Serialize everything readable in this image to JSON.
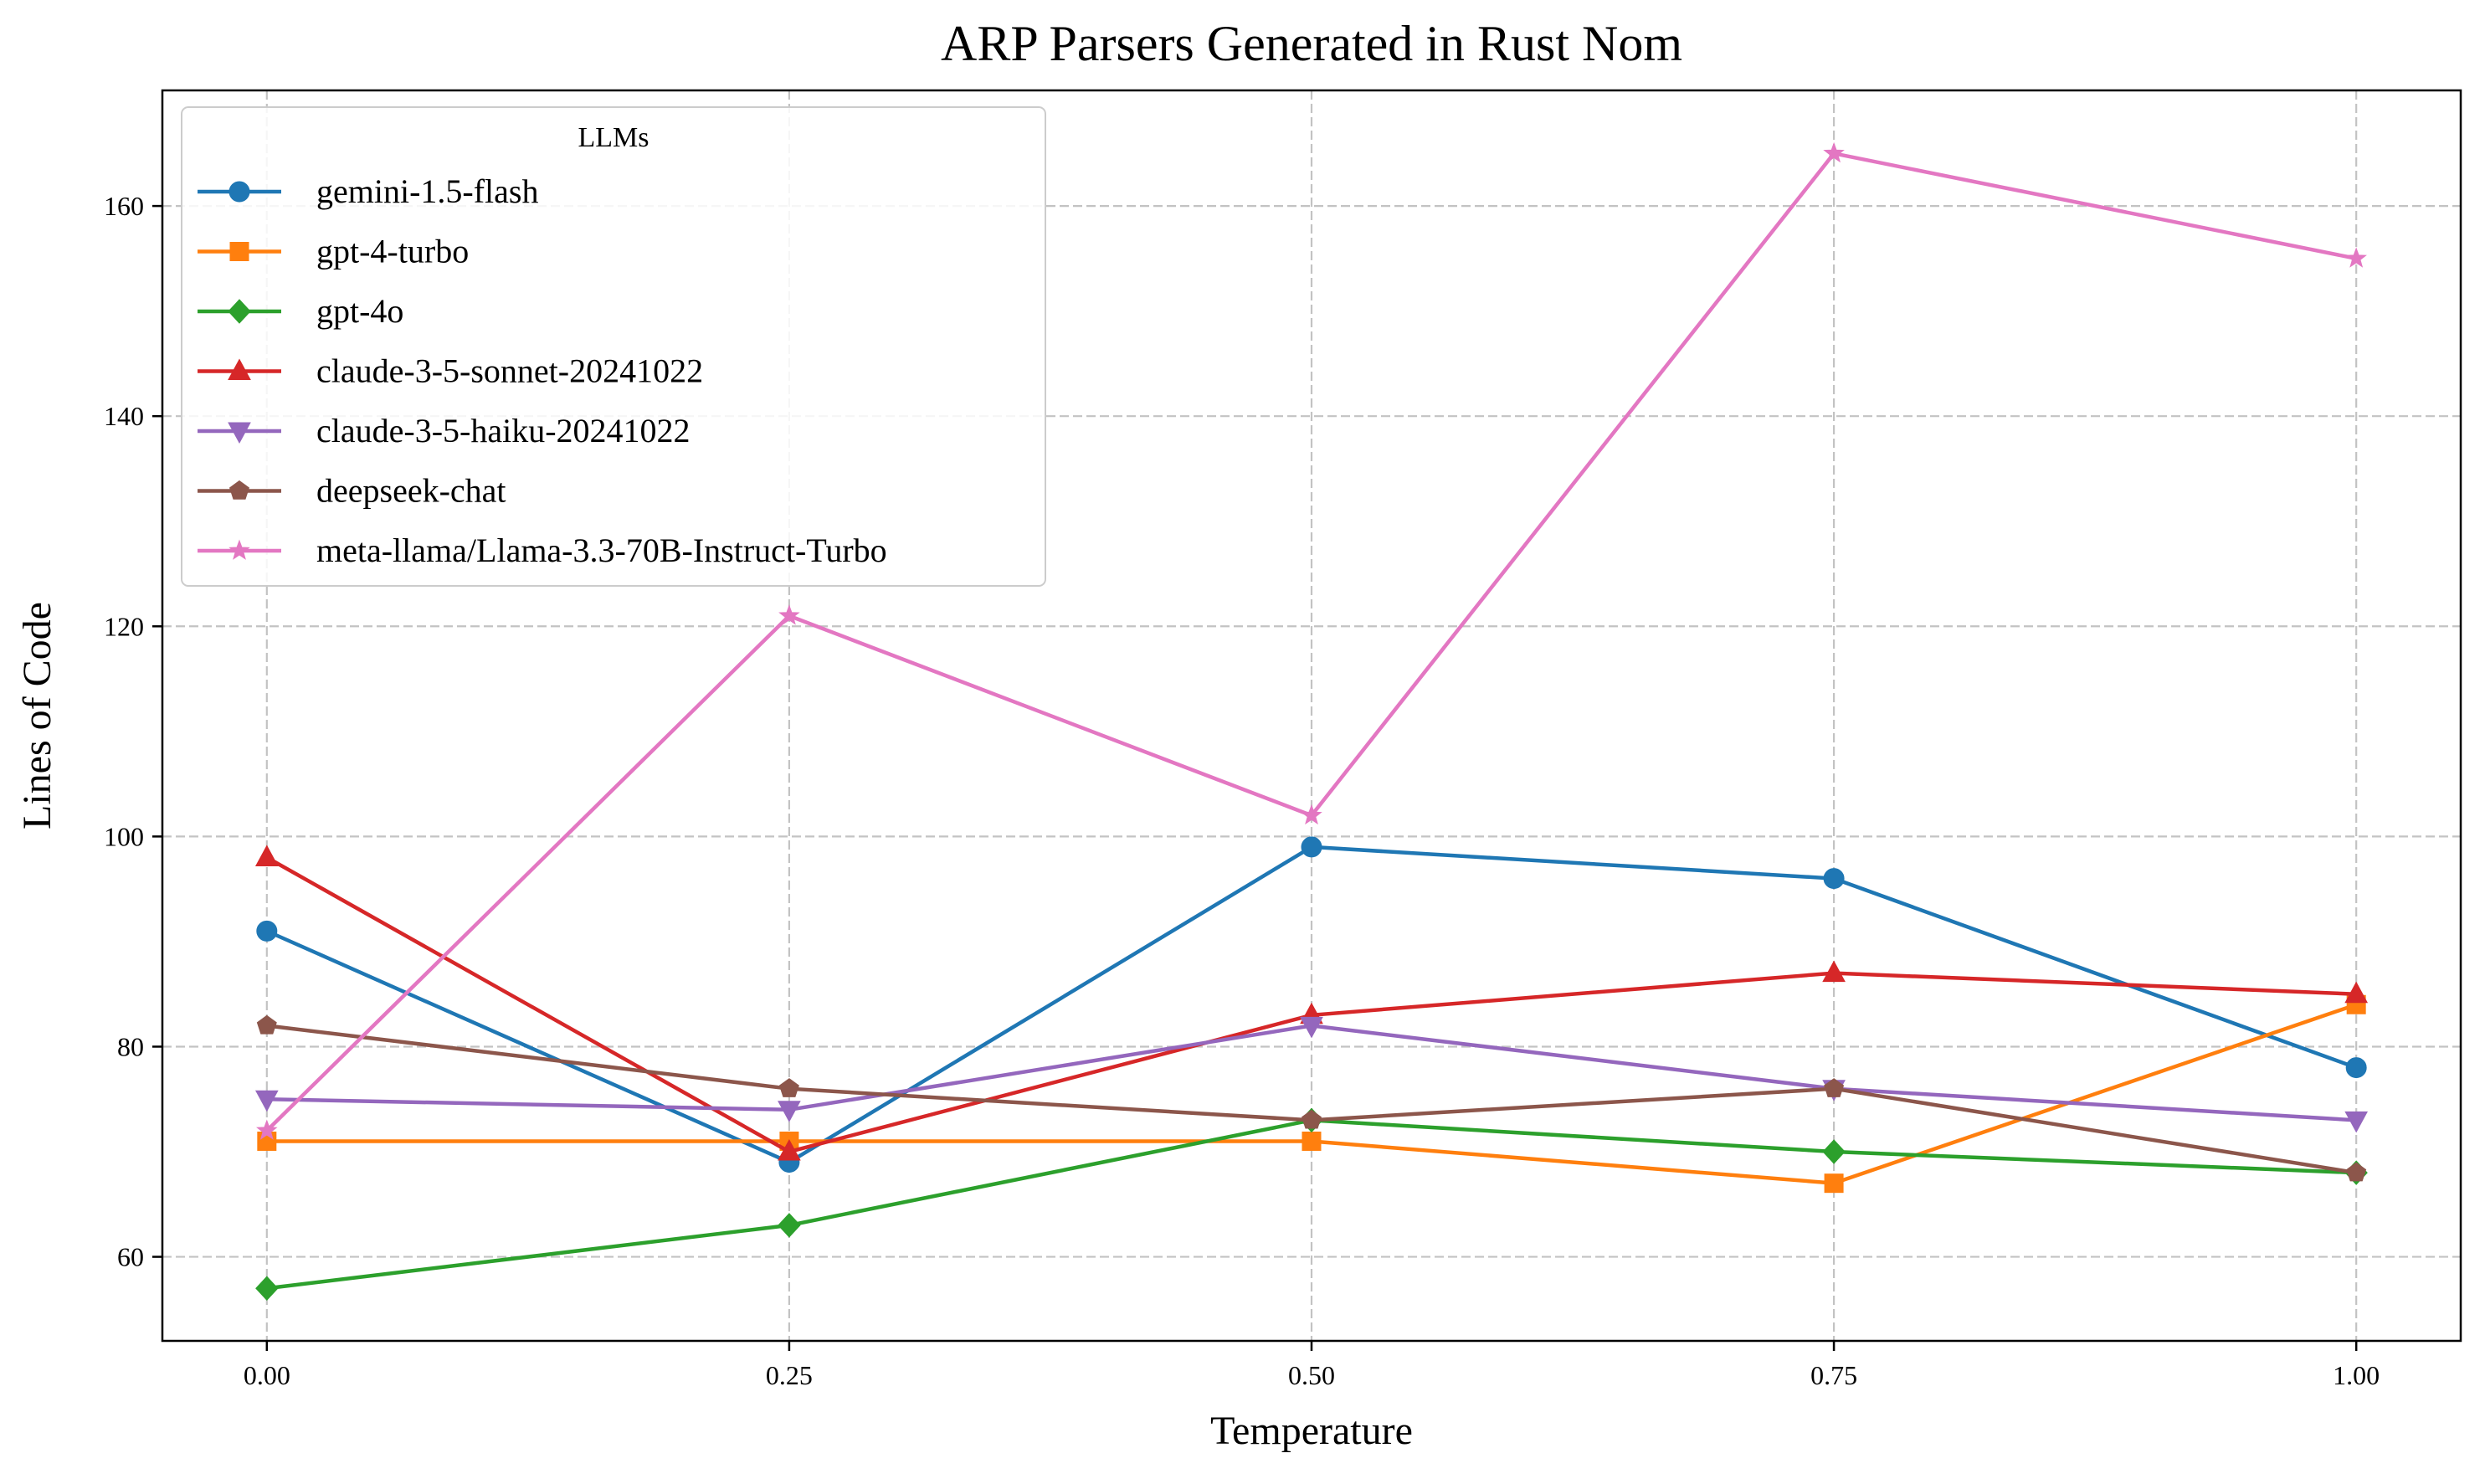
{
  "chart_data": {
    "type": "line",
    "title": "ARP Parsers Generated in Rust Nom",
    "xlabel": "Temperature",
    "ylabel": "Lines of Code",
    "x": [
      0.0,
      0.25,
      0.5,
      0.75,
      1.0
    ],
    "x_tick_labels": [
      "0.00",
      "0.25",
      "0.50",
      "0.75",
      "1.00"
    ],
    "y_ticks": [
      60,
      80,
      100,
      120,
      140,
      160
    ],
    "xlim": [
      -0.05,
      1.05
    ],
    "ylim": [
      52,
      171
    ],
    "grid": true,
    "legend": {
      "title": "LLMs",
      "position": "top-left"
    },
    "series": [
      {
        "name": "gemini-1.5-flash",
        "values": [
          91,
          69,
          99,
          96,
          78
        ],
        "color": "#1f77b4",
        "marker": "circle"
      },
      {
        "name": "gpt-4-turbo",
        "values": [
          71,
          71,
          71,
          67,
          84
        ],
        "color": "#ff7f0e",
        "marker": "square"
      },
      {
        "name": "gpt-4o",
        "values": [
          57,
          63,
          73,
          70,
          68
        ],
        "color": "#2ca02c",
        "marker": "diamond"
      },
      {
        "name": "claude-3-5-sonnet-20241022",
        "values": [
          98,
          70,
          83,
          87,
          85
        ],
        "color": "#d62728",
        "marker": "triangle-up"
      },
      {
        "name": "claude-3-5-haiku-20241022",
        "values": [
          75,
          74,
          82,
          76,
          73
        ],
        "color": "#9467bd",
        "marker": "triangle-down"
      },
      {
        "name": "deepseek-chat",
        "values": [
          82,
          76,
          73,
          76,
          68
        ],
        "color": "#8c564b",
        "marker": "pentagon"
      },
      {
        "name": "meta-llama/Llama-3.3-70B-Instruct-Turbo",
        "values": [
          72,
          121,
          102,
          165,
          155
        ],
        "color": "#e377c2",
        "marker": "star"
      }
    ]
  }
}
